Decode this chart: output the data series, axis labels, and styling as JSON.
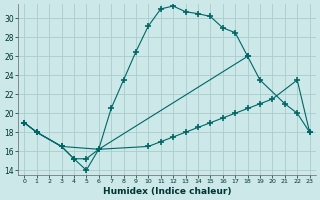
{
  "xlabel": "Humidex (Indice chaleur)",
  "bg_color": "#cce8e8",
  "grid_color": "#aacccc",
  "line_color": "#006666",
  "xlim": [
    -0.5,
    23.5
  ],
  "ylim": [
    13.5,
    31.5
  ],
  "xticks": [
    0,
    1,
    2,
    3,
    4,
    5,
    6,
    7,
    8,
    9,
    10,
    11,
    12,
    13,
    14,
    15,
    16,
    17,
    18,
    19,
    20,
    21,
    22,
    23
  ],
  "yticks": [
    14,
    16,
    18,
    20,
    22,
    24,
    26,
    28,
    30
  ],
  "line1_x": [
    0,
    1,
    3,
    4,
    5,
    6,
    7,
    8,
    9,
    10,
    11,
    12,
    13,
    14,
    15,
    16,
    17,
    18
  ],
  "line1_y": [
    19.0,
    18.0,
    16.5,
    15.2,
    14.0,
    16.2,
    20.5,
    23.5,
    26.5,
    29.2,
    31.0,
    31.3,
    30.7,
    30.5,
    30.2,
    29.0,
    28.5,
    26.0
  ],
  "line2_x": [
    0,
    1,
    3,
    4,
    5,
    6,
    18,
    19,
    21,
    22,
    23
  ],
  "line2_y": [
    19.0,
    18.0,
    16.5,
    15.2,
    15.2,
    16.2,
    26.0,
    23.5,
    21.0,
    20.0,
    18.0
  ],
  "line3_x": [
    0,
    1,
    3,
    6,
    10,
    11,
    12,
    13,
    14,
    15,
    16,
    17,
    18,
    19,
    20,
    22,
    23
  ],
  "line3_y": [
    19.0,
    18.0,
    16.5,
    16.2,
    16.5,
    17.0,
    17.5,
    18.0,
    18.5,
    19.0,
    19.5,
    20.0,
    20.5,
    21.0,
    21.5,
    23.5,
    18.0
  ]
}
